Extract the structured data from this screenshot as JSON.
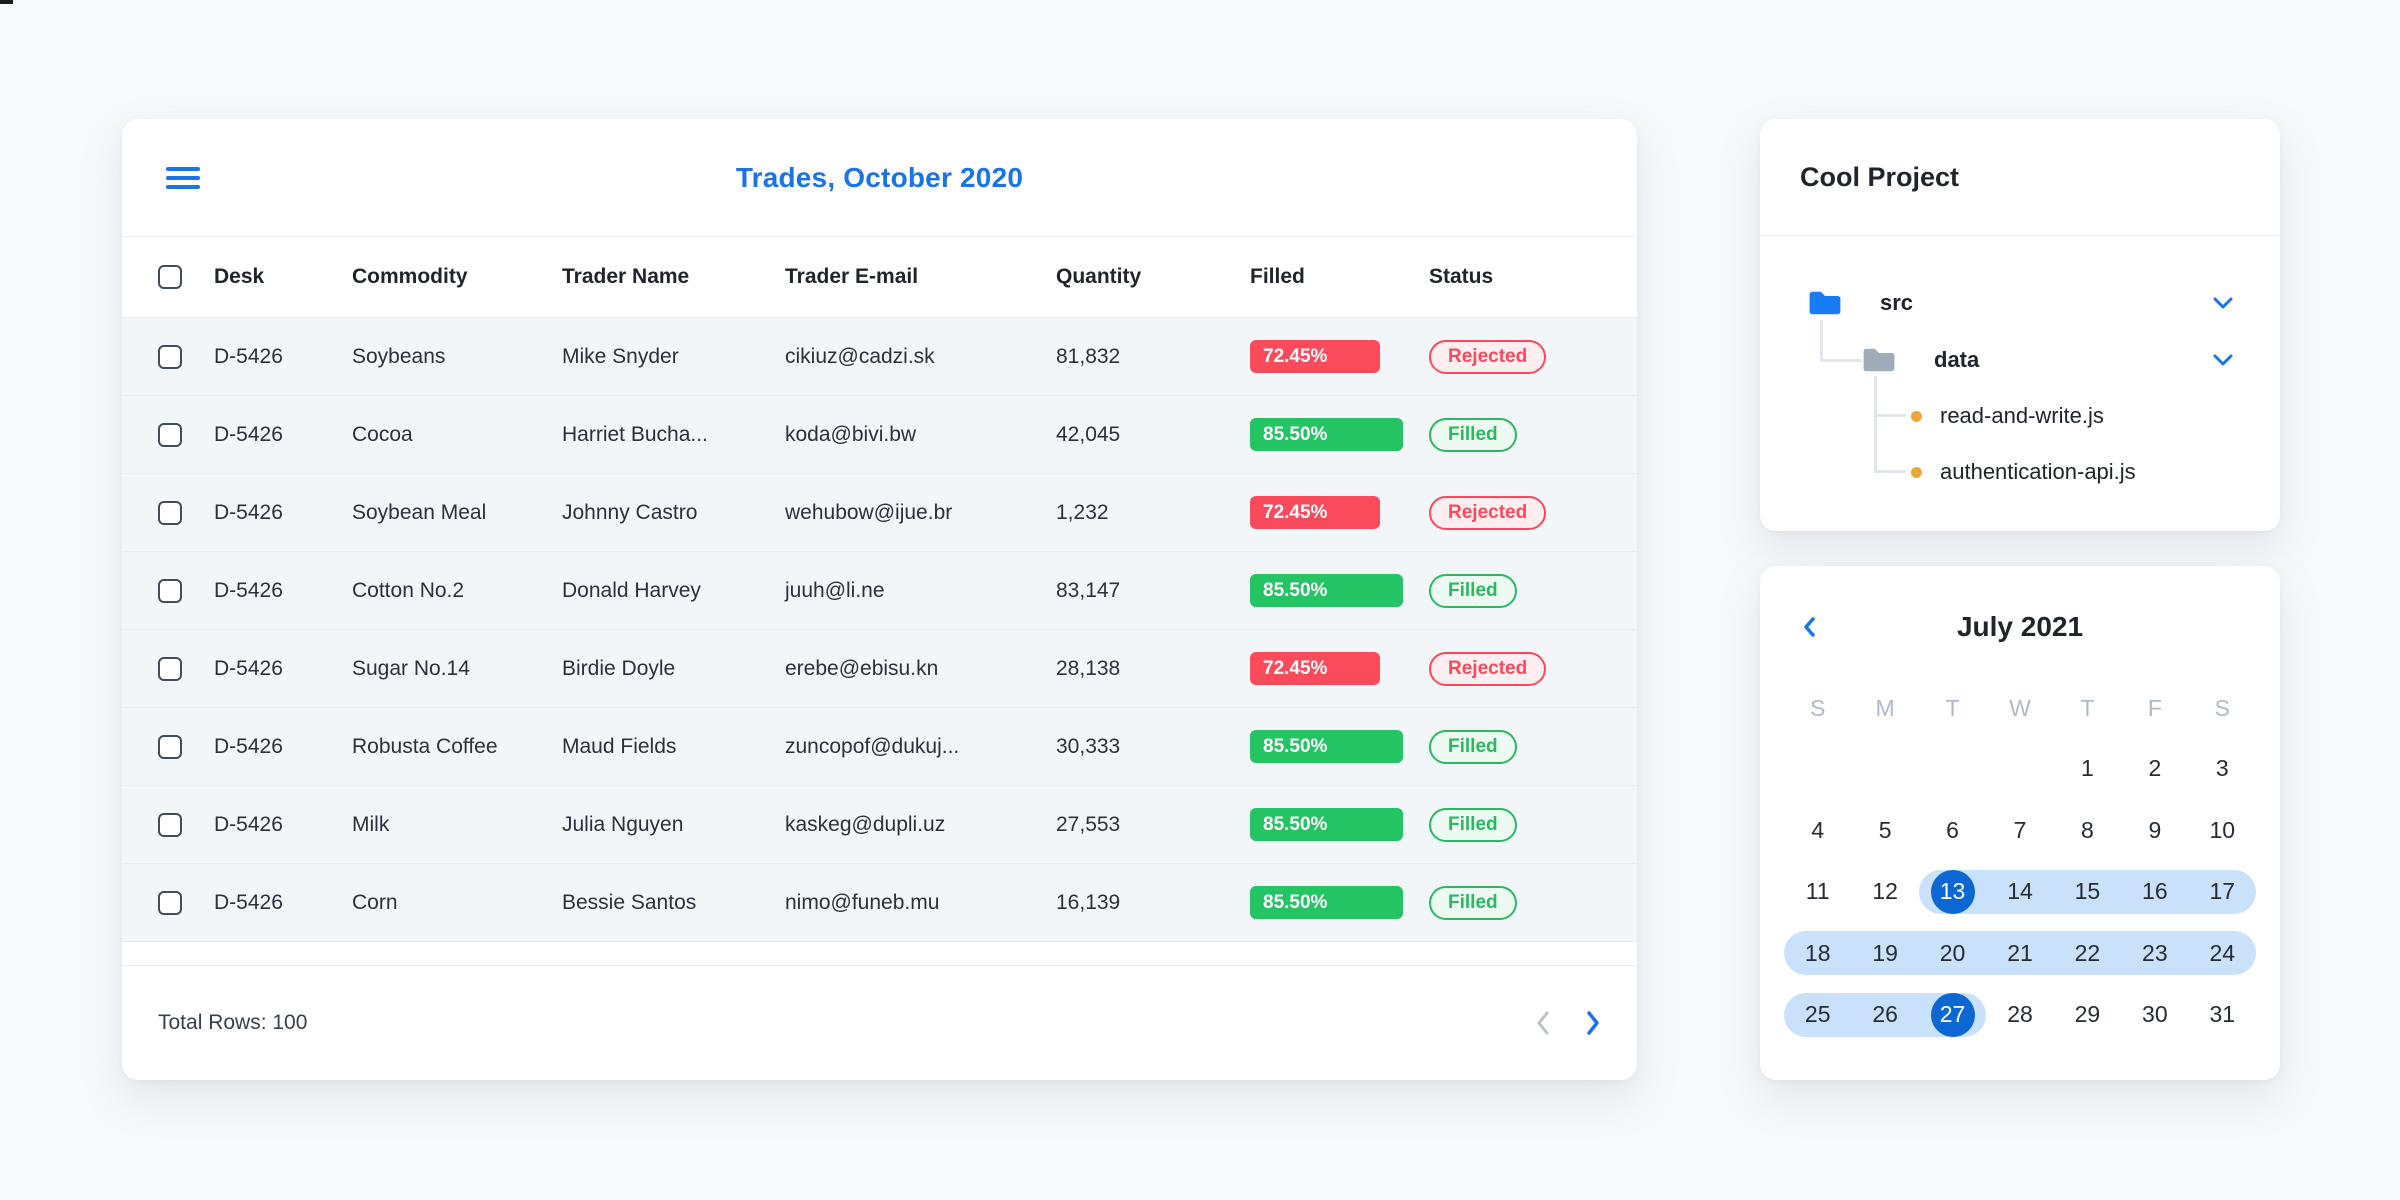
{
  "colors": {
    "accent_blue": "#1a73e8",
    "selected_day_blue": "#0d67d2",
    "range_band_blue": "#c9e1fb",
    "progress_red": "#fa4b5c",
    "progress_green": "#24c465",
    "badge_rejected_red": "#f9495c",
    "badge_filled_green": "#28b961",
    "folder_blue": "#1a7bf7",
    "folder_gray": "#9fadbb",
    "file_dot_orange": "#f0a532"
  },
  "trades": {
    "title": "Trades, October 2020",
    "columns": [
      "Desk",
      "Commodity",
      "Trader Name",
      "Trader E-mail",
      "Quantity",
      "Filled",
      "Status"
    ],
    "rows": [
      {
        "desk": "D-5426",
        "commodity": "Soybeans",
        "trader": "Mike Snyder",
        "email": "cikiuz@cadzi.sk",
        "quantity": "81,832",
        "filled_pct": "72.45%",
        "filled_value": 72.45,
        "status": "Rejected"
      },
      {
        "desk": "D-5426",
        "commodity": "Cocoa",
        "trader": "Harriet Bucha...",
        "email": "koda@bivi.bw",
        "quantity": "42,045",
        "filled_pct": "85.50%",
        "filled_value": 85.5,
        "status": "Filled"
      },
      {
        "desk": "D-5426",
        "commodity": "Soybean Meal",
        "trader": "Johnny Castro",
        "email": "wehubow@ijue.br",
        "quantity": "1,232",
        "filled_pct": "72.45%",
        "filled_value": 72.45,
        "status": "Rejected"
      },
      {
        "desk": "D-5426",
        "commodity": "Cotton No.2",
        "trader": "Donald Harvey",
        "email": "juuh@li.ne",
        "quantity": "83,147",
        "filled_pct": "85.50%",
        "filled_value": 85.5,
        "status": "Filled"
      },
      {
        "desk": "D-5426",
        "commodity": "Sugar No.14",
        "trader": "Birdie Doyle",
        "email": "erebe@ebisu.kn",
        "quantity": "28,138",
        "filled_pct": "72.45%",
        "filled_value": 72.45,
        "status": "Rejected"
      },
      {
        "desk": "D-5426",
        "commodity": "Robusta Coffee",
        "trader": "Maud Fields",
        "email": "zuncopof@dukuj...",
        "quantity": "30,333",
        "filled_pct": "85.50%",
        "filled_value": 85.5,
        "status": "Filled"
      },
      {
        "desk": "D-5426",
        "commodity": "Milk",
        "trader": "Julia Nguyen",
        "email": "kaskeg@dupli.uz",
        "quantity": "27,553",
        "filled_pct": "85.50%",
        "filled_value": 85.5,
        "status": "Filled"
      },
      {
        "desk": "D-5426",
        "commodity": "Corn",
        "trader": "Bessie Santos",
        "email": "nimo@funeb.mu",
        "quantity": "16,139",
        "filled_pct": "85.50%",
        "filled_value": 85.5,
        "status": "Filled"
      }
    ],
    "footer": {
      "total_label": "Total Rows: 100"
    }
  },
  "project": {
    "title": "Cool Project",
    "tree": {
      "folder1": "src",
      "folder2": "data",
      "file1": "read-and-write.js",
      "file2": "authentication-api.js"
    }
  },
  "calendar": {
    "month_title": "July 2021",
    "weekday_headers": [
      "S",
      "M",
      "T",
      "W",
      "T",
      "F",
      "S"
    ],
    "days": [
      1,
      2,
      3,
      4,
      5,
      6,
      7,
      8,
      9,
      10,
      11,
      12,
      13,
      14,
      15,
      16,
      17,
      18,
      19,
      20,
      21,
      22,
      23,
      24,
      25,
      26,
      27,
      28,
      29,
      30,
      31
    ],
    "range_start_day": 13,
    "range_end_day": 27
  }
}
